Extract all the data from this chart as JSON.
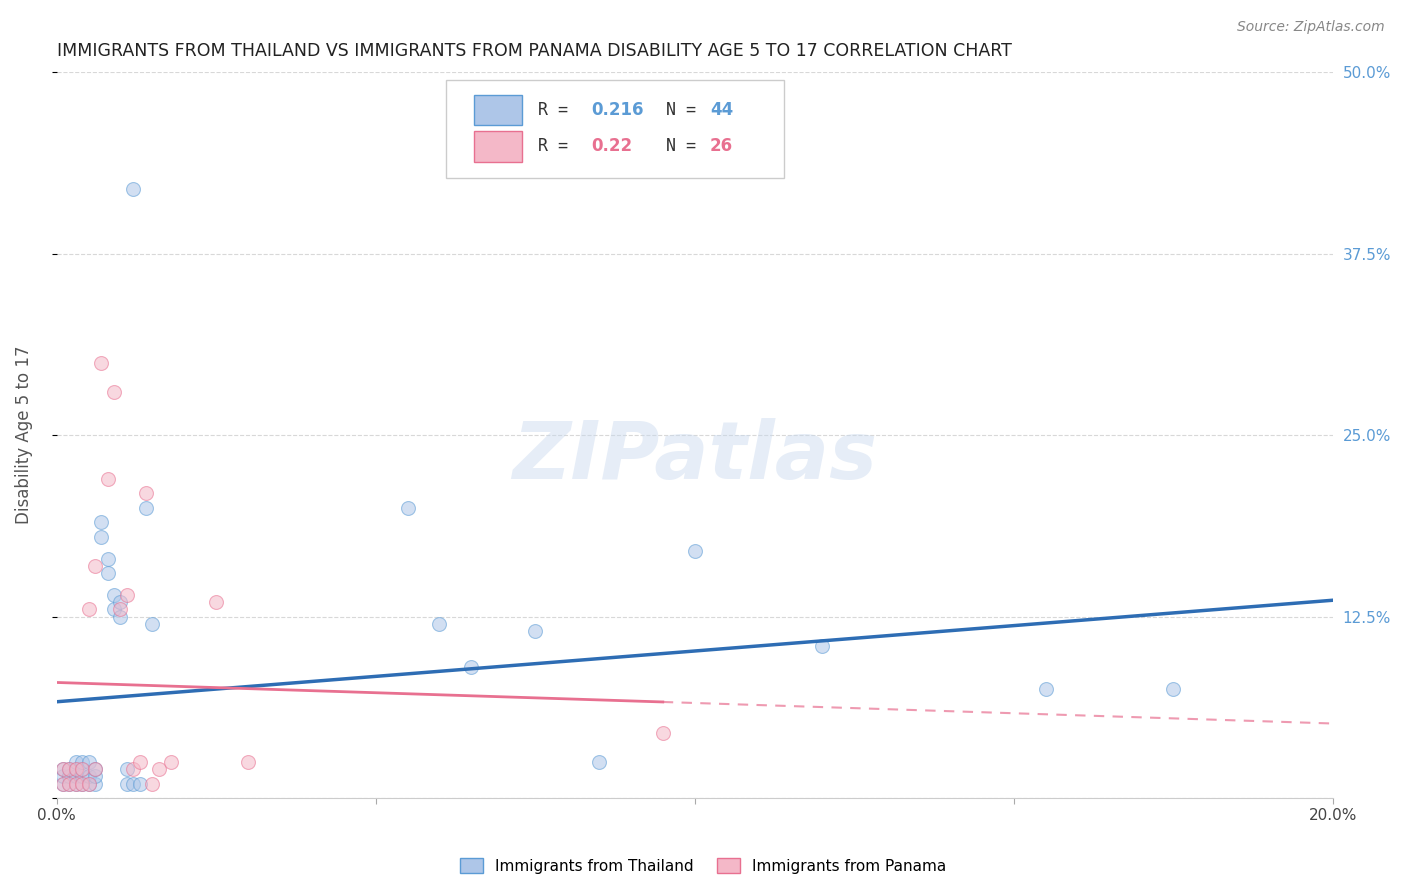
{
  "title": "IMMIGRANTS FROM THAILAND VS IMMIGRANTS FROM PANAMA DISABILITY AGE 5 TO 17 CORRELATION CHART",
  "source": "Source: ZipAtlas.com",
  "ylabel": "Disability Age 5 to 17",
  "xlim": [
    0.0,
    0.2
  ],
  "ylim": [
    0.0,
    0.5
  ],
  "xticks": [
    0.0,
    0.05,
    0.1,
    0.15,
    0.2
  ],
  "yticks": [
    0.0,
    0.125,
    0.25,
    0.375,
    0.5
  ],
  "background_color": "#ffffff",
  "grid_color": "#d8d8d8",
  "title_color": "#222222",
  "right_tick_color": "#5b9bd5",
  "thailand_color": "#aec6e8",
  "thailand_edge_color": "#5b9bd5",
  "thailand_line_color": "#2e6db4",
  "panama_color": "#f4b8c8",
  "panama_edge_color": "#e87090",
  "panama_line_color": "#e87090",
  "R_thailand": 0.216,
  "N_thailand": 44,
  "R_panama": 0.22,
  "N_panama": 26,
  "thailand_x": [
    0.001,
    0.001,
    0.001,
    0.002,
    0.002,
    0.002,
    0.003,
    0.003,
    0.003,
    0.003,
    0.004,
    0.004,
    0.004,
    0.004,
    0.005,
    0.005,
    0.005,
    0.006,
    0.006,
    0.006,
    0.007,
    0.007,
    0.008,
    0.008,
    0.009,
    0.009,
    0.01,
    0.01,
    0.011,
    0.011,
    0.012,
    0.012,
    0.013,
    0.014,
    0.015,
    0.055,
    0.06,
    0.065,
    0.075,
    0.085,
    0.1,
    0.12,
    0.155,
    0.175
  ],
  "thailand_y": [
    0.01,
    0.015,
    0.02,
    0.01,
    0.015,
    0.02,
    0.01,
    0.015,
    0.02,
    0.025,
    0.01,
    0.015,
    0.02,
    0.025,
    0.01,
    0.015,
    0.025,
    0.01,
    0.015,
    0.02,
    0.18,
    0.19,
    0.155,
    0.165,
    0.13,
    0.14,
    0.125,
    0.135,
    0.01,
    0.02,
    0.01,
    0.42,
    0.01,
    0.2,
    0.12,
    0.2,
    0.12,
    0.09,
    0.115,
    0.025,
    0.17,
    0.105,
    0.075,
    0.075
  ],
  "panama_x": [
    0.001,
    0.001,
    0.002,
    0.002,
    0.003,
    0.003,
    0.004,
    0.004,
    0.005,
    0.005,
    0.006,
    0.006,
    0.007,
    0.008,
    0.009,
    0.01,
    0.011,
    0.012,
    0.013,
    0.014,
    0.015,
    0.016,
    0.018,
    0.025,
    0.03,
    0.095
  ],
  "panama_y": [
    0.01,
    0.02,
    0.01,
    0.02,
    0.01,
    0.02,
    0.01,
    0.02,
    0.01,
    0.13,
    0.02,
    0.16,
    0.3,
    0.22,
    0.28,
    0.13,
    0.14,
    0.02,
    0.025,
    0.21,
    0.01,
    0.02,
    0.025,
    0.135,
    0.025,
    0.045
  ],
  "watermark": "ZIPatlas",
  "marker_size": 100,
  "marker_alpha": 0.55
}
